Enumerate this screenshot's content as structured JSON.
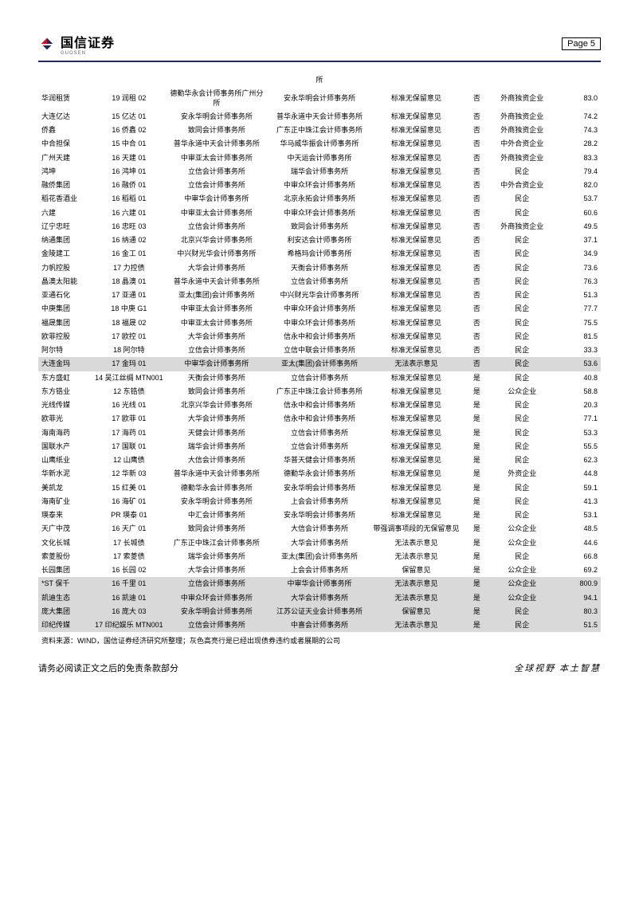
{
  "header": {
    "company": "国信证券",
    "logo_sub": "GUOSEN",
    "page_label": "Page  5"
  },
  "table": {
    "top_row_trailing": "所",
    "rows": [
      {
        "c0": "华润租赁",
        "c1": "19 润租 02",
        "c2": "德勤华永会计师事务所广州分所",
        "c3": "安永华明会计师事务所",
        "c4": "标准无保留意见",
        "c5": "否",
        "c6": "外商独资企业",
        "c7": "83.0",
        "hl": false
      },
      {
        "c0": "大连亿达",
        "c1": "15 亿达 01",
        "c2": "安永华明会计师事务所",
        "c3": "普华永道中天会计师事务所",
        "c4": "标准无保留意见",
        "c5": "否",
        "c6": "外商独资企业",
        "c7": "74.2",
        "hl": false
      },
      {
        "c0": "侨鑫",
        "c1": "16 侨鑫 02",
        "c2": "致同会计师事务所",
        "c3": "广东正中珠江会计师事务所",
        "c4": "标准无保留意见",
        "c5": "否",
        "c6": "外商独资企业",
        "c7": "74.3",
        "hl": false
      },
      {
        "c0": "中合担保",
        "c1": "15 中合 01",
        "c2": "普华永道中天会计师事务所",
        "c3": "华马威华振会计师事务所",
        "c4": "标准无保留意见",
        "c5": "否",
        "c6": "中外合资企业",
        "c7": "28.2",
        "hl": false
      },
      {
        "c0": "广州天建",
        "c1": "16 天建 01",
        "c2": "中审亚太会计师事务所",
        "c3": "中天运会计师事务所",
        "c4": "标准无保留意见",
        "c5": "否",
        "c6": "外商独资企业",
        "c7": "83.3",
        "hl": false
      },
      {
        "c0": "鸿坤",
        "c1": "16 鸿坤 01",
        "c2": "立信会计师事务所",
        "c3": "瑞华会计师事务所",
        "c4": "标准无保留意见",
        "c5": "否",
        "c6": "民企",
        "c7": "79.4",
        "hl": false
      },
      {
        "c0": "融侨集团",
        "c1": "16 融侨 01",
        "c2": "立信会计师事务所",
        "c3": "中审众环会计师事务所",
        "c4": "标准无保留意见",
        "c5": "否",
        "c6": "中外合资企业",
        "c7": "82.0",
        "hl": false
      },
      {
        "c0": "稻花香酒业",
        "c1": "16 稻稻 01",
        "c2": "中审华会计师事务所",
        "c3": "北京永拓会计师事务所",
        "c4": "标准无保留意见",
        "c5": "否",
        "c6": "民企",
        "c7": "53.7",
        "hl": false
      },
      {
        "c0": "六建",
        "c1": "16 六建 01",
        "c2": "中审亚太会计师事务所",
        "c3": "中审众环会计师事务所",
        "c4": "标准无保留意见",
        "c5": "否",
        "c6": "民企",
        "c7": "60.6",
        "hl": false
      },
      {
        "c0": "辽宁忠旺",
        "c1": "16 忠旺 03",
        "c2": "立信会计师事务所",
        "c3": "致同会计师事务所",
        "c4": "标准无保留意见",
        "c5": "否",
        "c6": "外商独资企业",
        "c7": "49.5",
        "hl": false
      },
      {
        "c0": "纳通集团",
        "c1": "16 纳通 02",
        "c2": "北京兴华会计师事务所",
        "c3": "利安达会计师事务所",
        "c4": "标准无保留意见",
        "c5": "否",
        "c6": "民企",
        "c7": "37.1",
        "hl": false
      },
      {
        "c0": "金陵建工",
        "c1": "16 金工 01",
        "c2": "中兴财光华会计师事务所",
        "c3": "希格玛会计师事务所",
        "c4": "标准无保留意见",
        "c5": "否",
        "c6": "民企",
        "c7": "34.9",
        "hl": false
      },
      {
        "c0": "力帆控股",
        "c1": "17 力控债",
        "c2": "大华会计师事务所",
        "c3": "天衡会计师事务所",
        "c4": "标准无保留意见",
        "c5": "否",
        "c6": "民企",
        "c7": "73.6",
        "hl": false
      },
      {
        "c0": "晶澳太阳能",
        "c1": "18 晶澳 01",
        "c2": "普华永道中天会计师事务所",
        "c3": "立信会计师事务所",
        "c4": "标准无保留意见",
        "c5": "否",
        "c6": "民企",
        "c7": "76.3",
        "hl": false
      },
      {
        "c0": "亚通石化",
        "c1": "17 亚通 01",
        "c2": "亚太(集团)会计师事务所",
        "c3": "中兴财光华会计师事务所",
        "c4": "标准无保留意见",
        "c5": "否",
        "c6": "民企",
        "c7": "51.3",
        "hl": false
      },
      {
        "c0": "中庚集团",
        "c1": "18 中庚 G1",
        "c2": "中审亚太会计师事务所",
        "c3": "中审众环会计师事务所",
        "c4": "标准无保留意见",
        "c5": "否",
        "c6": "民企",
        "c7": "77.7",
        "hl": false
      },
      {
        "c0": "福晟集团",
        "c1": "18 福晟 02",
        "c2": "中审亚太会计师事务所",
        "c3": "中审众环会计师事务所",
        "c4": "标准无保留意见",
        "c5": "否",
        "c6": "民企",
        "c7": "75.5",
        "hl": false
      },
      {
        "c0": "欧菲控股",
        "c1": "17 欧控 01",
        "c2": "大华会计师事务所",
        "c3": "信永中和会计师事务所",
        "c4": "标准无保留意见",
        "c5": "否",
        "c6": "民企",
        "c7": "81.5",
        "hl": false
      },
      {
        "c0": "阿尔特",
        "c1": "18 阿尔特",
        "c2": "立信会计师事务所",
        "c3": "立信中联会计师事务所",
        "c4": "标准无保留意见",
        "c5": "否",
        "c6": "民企",
        "c7": "33.3",
        "hl": false
      },
      {
        "c0": "大连金玛",
        "c1": "17 金玛 01",
        "c2": "中审华会计师事务所",
        "c3": "亚太(集团)会计师事务所",
        "c4": "无法表示意见",
        "c5": "否",
        "c6": "民企",
        "c7": "53.6",
        "hl": true
      },
      {
        "c0": "东方盛虹",
        "c1": "14 吴江丝绸 MTN001",
        "c2": "天衡会计师事务所",
        "c3": "立信会计师事务所",
        "c4": "标准无保留意见",
        "c5": "是",
        "c6": "民企",
        "c7": "40.8",
        "hl": false
      },
      {
        "c0": "东方锆业",
        "c1": "12 东锆债",
        "c2": "致同会计师事务所",
        "c3": "广东正中珠江会计师事务所",
        "c4": "标准无保留意见",
        "c5": "是",
        "c6": "公众企业",
        "c7": "58.8",
        "hl": false
      },
      {
        "c0": "光线传媒",
        "c1": "16 光线 01",
        "c2": "北京兴华会计师事务所",
        "c3": "信永中和会计师事务所",
        "c4": "标准无保留意见",
        "c5": "是",
        "c6": "民企",
        "c7": "20.3",
        "hl": false
      },
      {
        "c0": "欧菲光",
        "c1": "17 欧菲 01",
        "c2": "大华会计师事务所",
        "c3": "信永中和会计师事务所",
        "c4": "标准无保留意见",
        "c5": "是",
        "c6": "民企",
        "c7": "77.1",
        "hl": false
      },
      {
        "c0": "海南海药",
        "c1": "17 海药 01",
        "c2": "天健会计师事务所",
        "c3": "立信会计师事务所",
        "c4": "标准无保留意见",
        "c5": "是",
        "c6": "民企",
        "c7": "53.3",
        "hl": false
      },
      {
        "c0": "国联水产",
        "c1": "17 国联 01",
        "c2": "瑞华会计师事务所",
        "c3": "立信会计师事务所",
        "c4": "标准无保留意见",
        "c5": "是",
        "c6": "民企",
        "c7": "55.5",
        "hl": false
      },
      {
        "c0": "山鹰纸业",
        "c1": "12 山鹰债",
        "c2": "大信会计师事务所",
        "c3": "华普天健会计师事务所",
        "c4": "标准无保留意见",
        "c5": "是",
        "c6": "民企",
        "c7": "62.3",
        "hl": false
      },
      {
        "c0": "华新水泥",
        "c1": "12 华新 03",
        "c2": "普华永道中天会计师事务所",
        "c3": "德勤华永会计师事务所",
        "c4": "标准无保留意见",
        "c5": "是",
        "c6": "外资企业",
        "c7": "44.8",
        "hl": false
      },
      {
        "c0": "美凯龙",
        "c1": "15 红美 01",
        "c2": "德勤华永会计师事务所",
        "c3": "安永华明会计师事务所",
        "c4": "标准无保留意见",
        "c5": "是",
        "c6": "民企",
        "c7": "59.1",
        "hl": false
      },
      {
        "c0": "海南矿业",
        "c1": "16 海矿 01",
        "c2": "安永华明会计师事务所",
        "c3": "上会会计师事务所",
        "c4": "标准无保留意见",
        "c5": "是",
        "c6": "民企",
        "c7": "41.3",
        "hl": false
      },
      {
        "c0": "瑛泰来",
        "c1": "PR 瑛泰 01",
        "c2": "中汇会计师事务所",
        "c3": "安永华明会计师事务所",
        "c4": "标准无保留意见",
        "c5": "是",
        "c6": "民企",
        "c7": "53.1",
        "hl": false
      },
      {
        "c0": "天广中茂",
        "c1": "16 天广 01",
        "c2": "致同会计师事务所",
        "c3": "大信会计师事务所",
        "c4": "带强调事项段的无保留意见",
        "c5": "是",
        "c6": "公众企业",
        "c7": "48.5",
        "hl": false
      },
      {
        "c0": "文化长城",
        "c1": "17 长城债",
        "c2": "广东正中珠江会计师事务所",
        "c3": "大华会计师事务所",
        "c4": "无法表示意见",
        "c5": "是",
        "c6": "公众企业",
        "c7": "44.6",
        "hl": false
      },
      {
        "c0": "索菱股份",
        "c1": "17 索菱债",
        "c2": "瑞华会计师事务所",
        "c3": "亚太(集团)会计师事务所",
        "c4": "无法表示意见",
        "c5": "是",
        "c6": "民企",
        "c7": "66.8",
        "hl": false
      },
      {
        "c0": "长园集团",
        "c1": "16 长园 02",
        "c2": "大华会计师事务所",
        "c3": "上会会计师事务所",
        "c4": "保留意见",
        "c5": "是",
        "c6": "公众企业",
        "c7": "69.2",
        "hl": false
      },
      {
        "c0": "*ST 保千",
        "c1": "16 千里 01",
        "c2": "立信会计师事务所",
        "c3": "中审华会计师事务所",
        "c4": "无法表示意见",
        "c5": "是",
        "c6": "公众企业",
        "c7": "800.9",
        "hl": true
      },
      {
        "c0": "凯迪生态",
        "c1": "16 凯迪 01",
        "c2": "中审众环会计师事务所",
        "c3": "大华会计师事务所",
        "c4": "无法表示意见",
        "c5": "是",
        "c6": "公众企业",
        "c7": "94.1",
        "hl": true
      },
      {
        "c0": "庞大集团",
        "c1": "16 庞大 03",
        "c2": "安永华明会计师事务所",
        "c3": "江苏公证天业会计师事务所",
        "c4": "保留意见",
        "c5": "是",
        "c6": "民企",
        "c7": "80.3",
        "hl": true
      },
      {
        "c0": "印纪传媒",
        "c1": "17 印纪娱乐 MTN001",
        "c2": "立信会计师事务所",
        "c3": "中喜会计师事务所",
        "c4": "无法表示意见",
        "c5": "是",
        "c6": "民企",
        "c7": "51.5",
        "hl": true
      }
    ],
    "source_note": "资料来源：WIND，国信证券经济研究所整理；灰色高亮行是已经出现债券违约或者展期的公司"
  },
  "footer": {
    "left": "请务必阅读正文之后的免责条款部分",
    "right": "全球视野  本土智慧"
  },
  "colors": {
    "divider": "#1a2a5a",
    "highlight_bg": "#d9d9d9",
    "logo_red": "#c8102e",
    "logo_blue": "#1a2a5a"
  }
}
